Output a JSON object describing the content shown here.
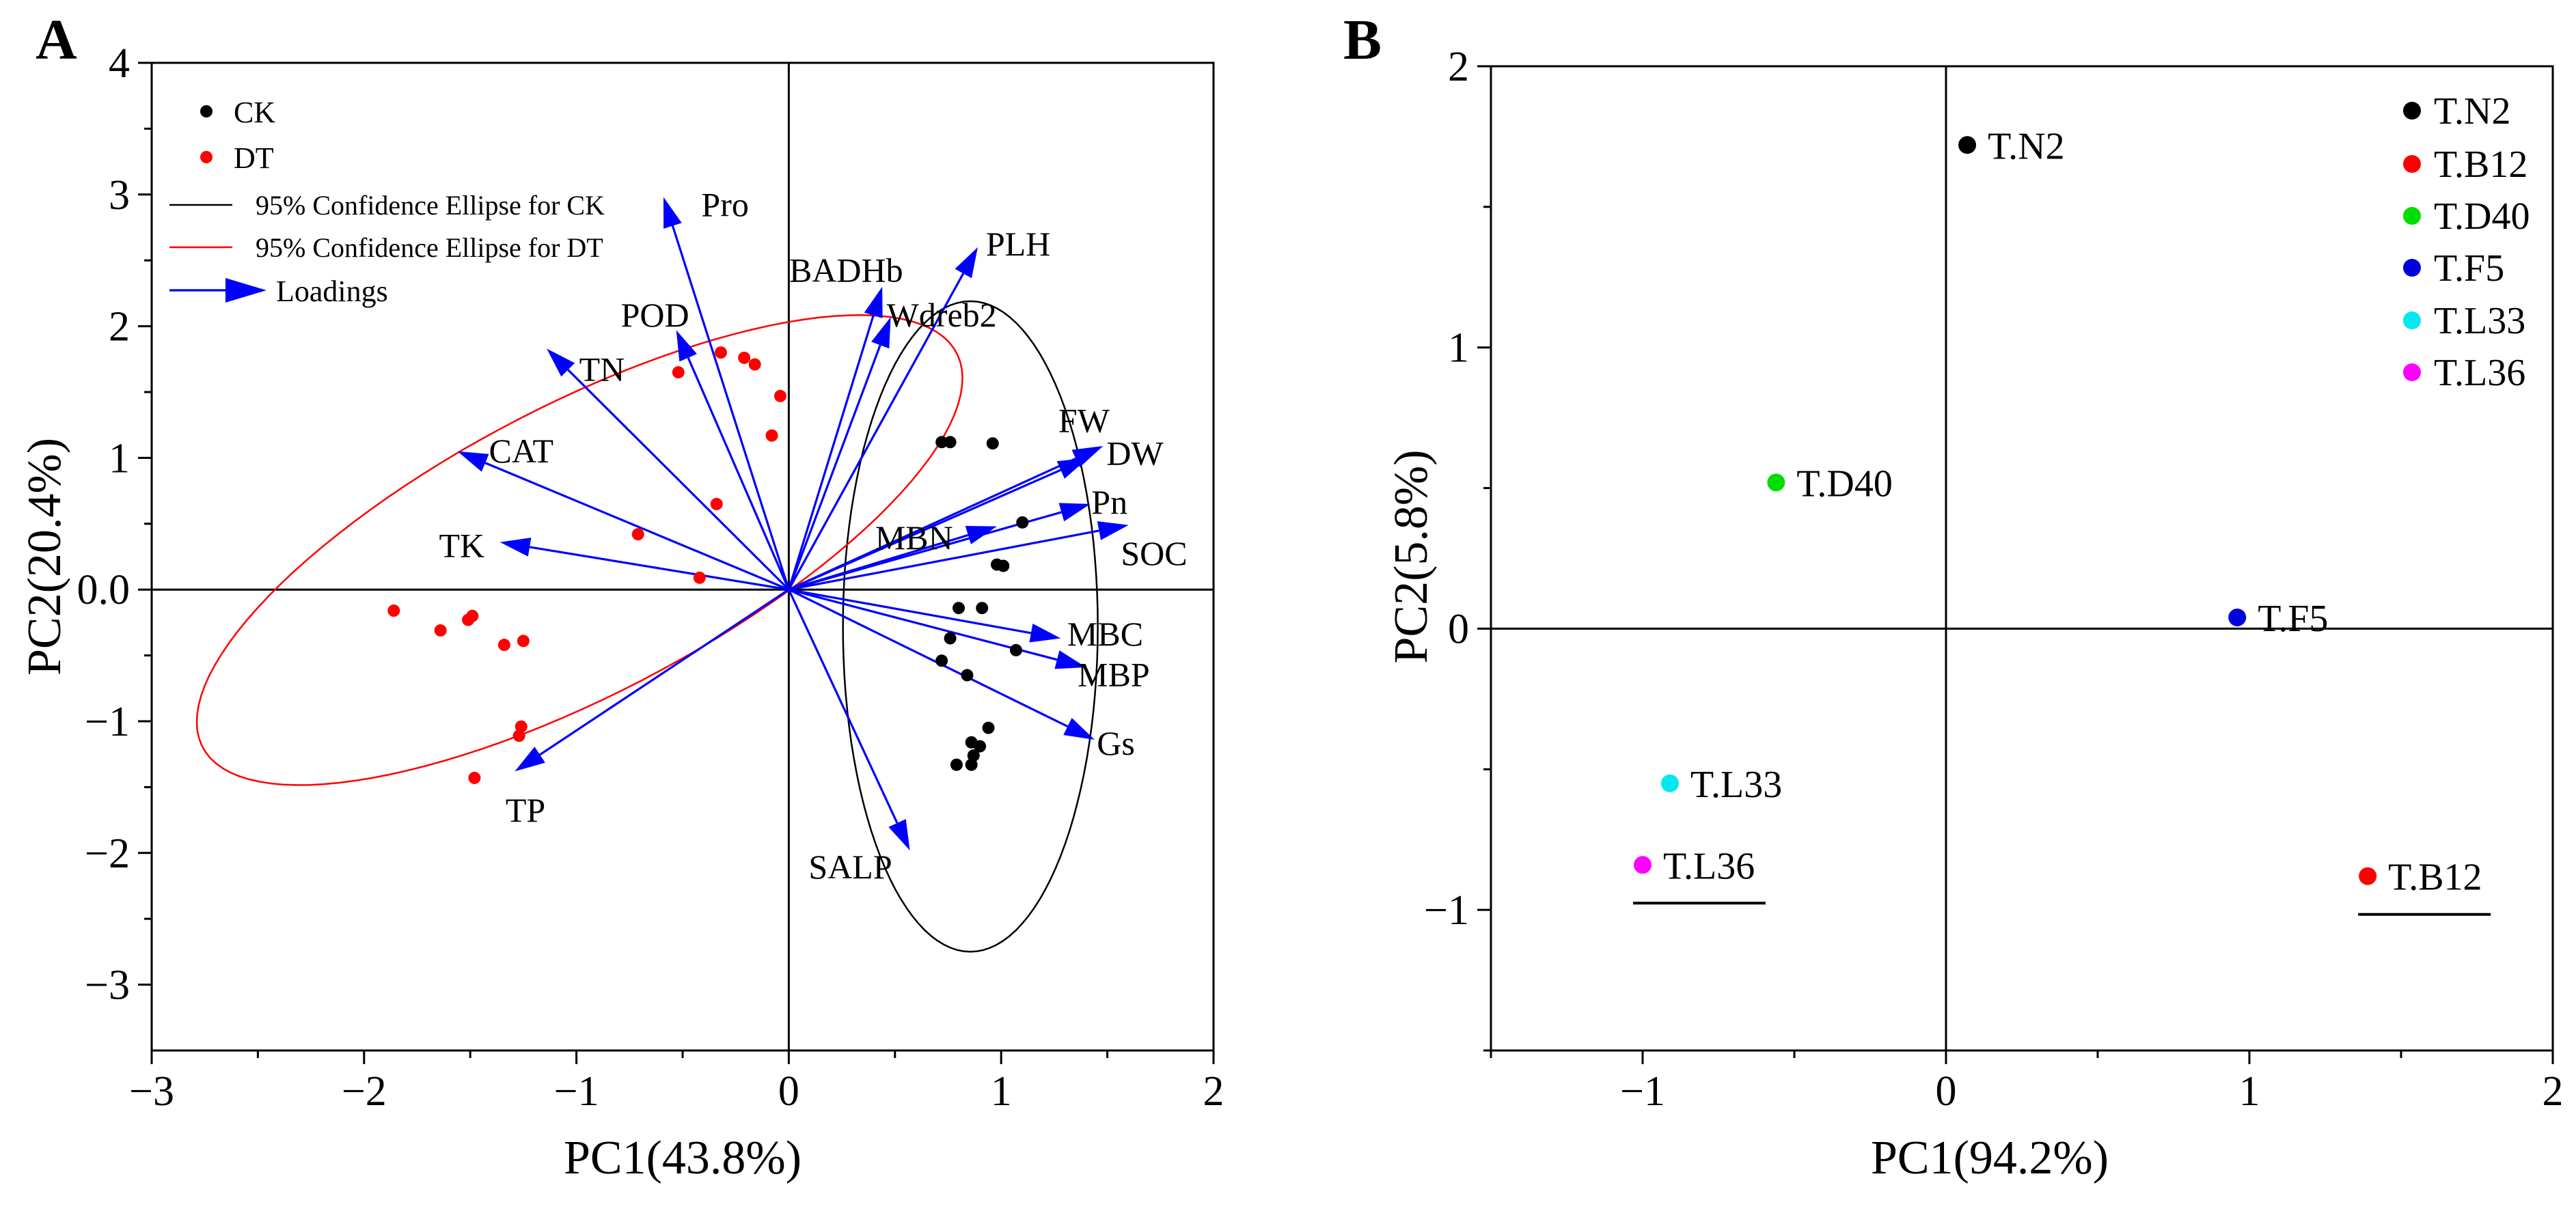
{
  "panels": [
    {
      "letter": "A",
      "chart_data": {
        "type": "scatter",
        "subtype": "pca-biplot",
        "xlabel": "PC1(43.8%)",
        "ylabel": "PC2(20.4%)",
        "xlim": [
          -3,
          2
        ],
        "ylim": [
          -3.5,
          4
        ],
        "xticks": [
          -3,
          -2,
          -1,
          0,
          1,
          2
        ],
        "xtick_labels": [
          "−3",
          "−2",
          "−1",
          "0",
          "1",
          "2"
        ],
        "yticks": [
          -3,
          -2,
          -1,
          0,
          1,
          2,
          3,
          4
        ],
        "ytick_labels": [
          "−3",
          "−2",
          "−1",
          "0.0",
          "1",
          "2",
          "3",
          "4"
        ],
        "legend": {
          "position": "top-left",
          "entries": [
            {
              "label": "CK",
              "kind": "dot",
              "color": "#000000"
            },
            {
              "label": "DT",
              "kind": "dot",
              "color": "#ff0000"
            },
            {
              "label": "95% Confidence Ellipse for CK",
              "kind": "line",
              "color": "#000000"
            },
            {
              "label": "95% Confidence Ellipse for DT",
              "kind": "line",
              "color": "#ff0000"
            },
            {
              "label": "Loadings",
              "kind": "arrow",
              "color": "#0000ff"
            }
          ]
        },
        "series": [
          {
            "name": "CK",
            "color": "#000000",
            "points": [
              [
                0.72,
                1.12
              ],
              [
                0.76,
                1.12
              ],
              [
                0.96,
                1.11
              ],
              [
                1.1,
                0.51
              ],
              [
                0.98,
                0.19
              ],
              [
                1.01,
                0.18
              ],
              [
                0.8,
                -0.14
              ],
              [
                0.91,
                -0.14
              ],
              [
                0.76,
                -0.37
              ],
              [
                1.07,
                -0.46
              ],
              [
                0.72,
                -0.54
              ],
              [
                0.84,
                -0.65
              ],
              [
                0.94,
                -1.05
              ],
              [
                0.86,
                -1.16
              ],
              [
                0.9,
                -1.19
              ],
              [
                0.87,
                -1.26
              ],
              [
                0.79,
                -1.33
              ],
              [
                0.86,
                -1.33
              ]
            ]
          },
          {
            "name": "DT",
            "color": "#ff0000",
            "points": [
              [
                -0.32,
                1.8
              ],
              [
                -0.21,
                1.76
              ],
              [
                -0.16,
                1.71
              ],
              [
                -0.52,
                1.65
              ],
              [
                -0.04,
                1.47
              ],
              [
                -0.08,
                1.17
              ],
              [
                -0.34,
                0.65
              ],
              [
                -0.71,
                0.42
              ],
              [
                -0.42,
                0.09
              ],
              [
                -1.86,
                -0.16
              ],
              [
                -1.49,
                -0.2
              ],
              [
                -1.51,
                -0.23
              ],
              [
                -1.64,
                -0.31
              ],
              [
                -1.25,
                -0.39
              ],
              [
                -1.34,
                -0.42
              ],
              [
                -1.26,
                -1.04
              ],
              [
                -1.27,
                -1.11
              ],
              [
                -1.48,
                -1.43
              ]
            ]
          }
        ],
        "ellipses": [
          {
            "name": "95% Confidence Ellipse for CK",
            "color": "#000000",
            "cx": 0.855,
            "cy": -0.28,
            "rx": 0.6,
            "ry": 2.47,
            "angle_deg": 0
          },
          {
            "name": "95% Confidence Ellipse for DT",
            "color": "#ff0000",
            "cx": -0.985,
            "cy": 0.3,
            "rx": 2.36,
            "ry": 0.93,
            "angle_deg": 44.6
          }
        ],
        "loadings_color": "#0000ff",
        "loadings": [
          {
            "name": "Pro",
            "x": -0.59,
            "y": 2.98,
            "lx": -0.3,
            "ly": 2.93
          },
          {
            "name": "PLH",
            "x": 0.89,
            "y": 2.6,
            "lx": 1.08,
            "ly": 2.63
          },
          {
            "name": "BADHb",
            "x": 0.44,
            "y": 2.3,
            "lx": 0.27,
            "ly": 2.43
          },
          {
            "name": "Wdreb2",
            "x": 0.48,
            "y": 2.07,
            "lx": 0.72,
            "ly": 2.09
          },
          {
            "name": "POD",
            "x": -0.53,
            "y": 1.97,
            "lx": -0.63,
            "ly": 2.09
          },
          {
            "name": "TN",
            "x": -1.14,
            "y": 1.83,
            "lx": -0.88,
            "ly": 1.68
          },
          {
            "name": "CAT",
            "x": -1.56,
            "y": 1.05,
            "lx": -1.26,
            "ly": 1.06
          },
          {
            "name": "FW",
            "x": 1.41,
            "y": 1.0,
            "lx": 1.39,
            "ly": 1.29
          },
          {
            "name": "DW",
            "x": 1.48,
            "y": 1.09,
            "lx": 1.63,
            "ly": 1.04
          },
          {
            "name": "Pn",
            "x": 1.42,
            "y": 0.65,
            "lx": 1.51,
            "ly": 0.67
          },
          {
            "name": "SOC",
            "x": 1.6,
            "y": 0.49,
            "lx": 1.72,
            "ly": 0.28
          },
          {
            "name": "MBN",
            "x": 0.98,
            "y": 0.48,
            "lx": 0.59,
            "ly": 0.4
          },
          {
            "name": "TK",
            "x": -1.36,
            "y": 0.36,
            "lx": -1.54,
            "ly": 0.34
          },
          {
            "name": "MBC",
            "x": 1.28,
            "y": -0.37,
            "lx": 1.49,
            "ly": -0.33
          },
          {
            "name": "MBP",
            "x": 1.4,
            "y": -0.59,
            "lx": 1.53,
            "ly": -0.64
          },
          {
            "name": "Gs",
            "x": 1.44,
            "y": -1.14,
            "lx": 1.54,
            "ly": -1.16
          },
          {
            "name": "TP",
            "x": -1.29,
            "y": -1.38,
            "lx": -1.24,
            "ly": -1.67
          },
          {
            "name": "SALP",
            "x": 0.57,
            "y": -1.98,
            "lx": 0.29,
            "ly": -2.1
          }
        ]
      }
    },
    {
      "letter": "B",
      "chart_data": {
        "type": "scatter",
        "xlabel": "PC1(94.2%)",
        "ylabel": "PC2(5.8%)",
        "xlim": [
          -1.5,
          2
        ],
        "ylim": [
          -1.5,
          2
        ],
        "xticks": [
          -1,
          0,
          1,
          2
        ],
        "xtick_labels": [
          "−1",
          "0",
          "1",
          "2"
        ],
        "yticks": [
          -1,
          0,
          1,
          2
        ],
        "ytick_labels": [
          "−1",
          "0",
          "1",
          "2"
        ],
        "legend": {
          "position": "top-right",
          "entries": [
            {
              "label": "T.N2",
              "color": "#000000"
            },
            {
              "label": "T.B12",
              "color": "#ff0000"
            },
            {
              "label": "T.D40",
              "color": "#00dd00"
            },
            {
              "label": "T.F5",
              "color": "#0000dd"
            },
            {
              "label": "T.L33",
              "color": "#00e8f0"
            },
            {
              "label": "T.L36",
              "color": "#ff00ff"
            }
          ]
        },
        "points": [
          {
            "label": "T.N2",
            "x": 0.07,
            "y": 1.72,
            "color": "#000000",
            "underline": false
          },
          {
            "label": "T.D40",
            "x": -0.56,
            "y": 0.52,
            "color": "#00dd00",
            "underline": false
          },
          {
            "label": "T.F5",
            "x": 0.96,
            "y": 0.04,
            "color": "#0000dd",
            "underline": false
          },
          {
            "label": "T.L33",
            "x": -0.91,
            "y": -0.55,
            "color": "#00e8f0",
            "underline": false
          },
          {
            "label": "T.L36",
            "x": -1.0,
            "y": -0.84,
            "color": "#ff00ff",
            "underline": true
          },
          {
            "label": "T.B12",
            "x": 1.39,
            "y": -0.88,
            "color": "#ff0000",
            "underline": true
          }
        ]
      }
    }
  ]
}
